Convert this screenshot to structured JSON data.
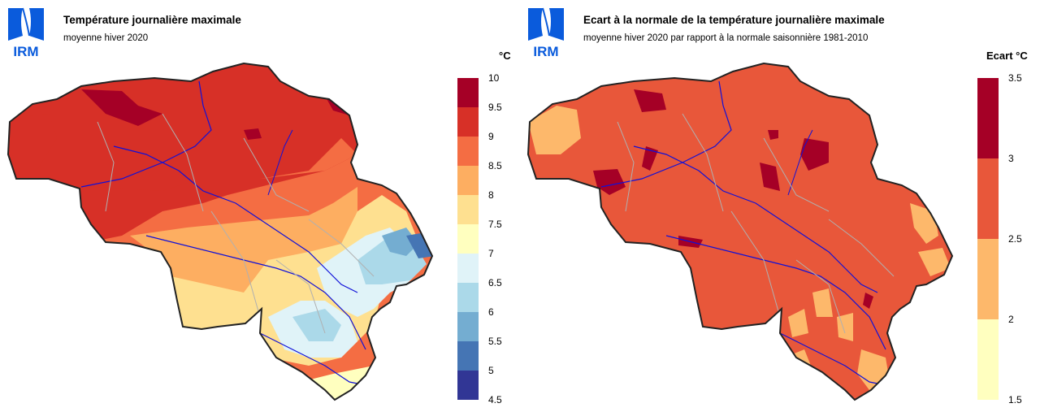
{
  "brand": "IRM",
  "left": {
    "title": "Température journalière maximale",
    "subtitle": "moyenne hiver 2020",
    "unit": "°C",
    "legend": {
      "ticks": [
        "10",
        "9.5",
        "9",
        "8.5",
        "8",
        "7.5",
        "7",
        "6.5",
        "6",
        "5.5",
        "5",
        "4.5"
      ],
      "colors": [
        "#a50026",
        "#d73027",
        "#f46d43",
        "#fdae61",
        "#fee090",
        "#ffffbf",
        "#e0f3f8",
        "#abd9e9",
        "#74add1",
        "#4575b4",
        "#313695"
      ]
    }
  },
  "right": {
    "title": "Ecart à la normale de la température journalière maximale",
    "subtitle": "moyenne hiver 2020 par rapport à la normale saisonnière 1981-2010",
    "unit": "Ecart  °C",
    "legend": {
      "ticks": [
        "3.5",
        "3",
        "2.5",
        "2",
        "1.5"
      ],
      "colors": [
        "#a50026",
        "#e8573a",
        "#fdb86b",
        "#ffffbf"
      ]
    }
  },
  "colors": {
    "logo_blue": "#0a5bdc",
    "border": "#222222",
    "province_lines": "#b0b0b0",
    "rivers": "#1010d8"
  }
}
